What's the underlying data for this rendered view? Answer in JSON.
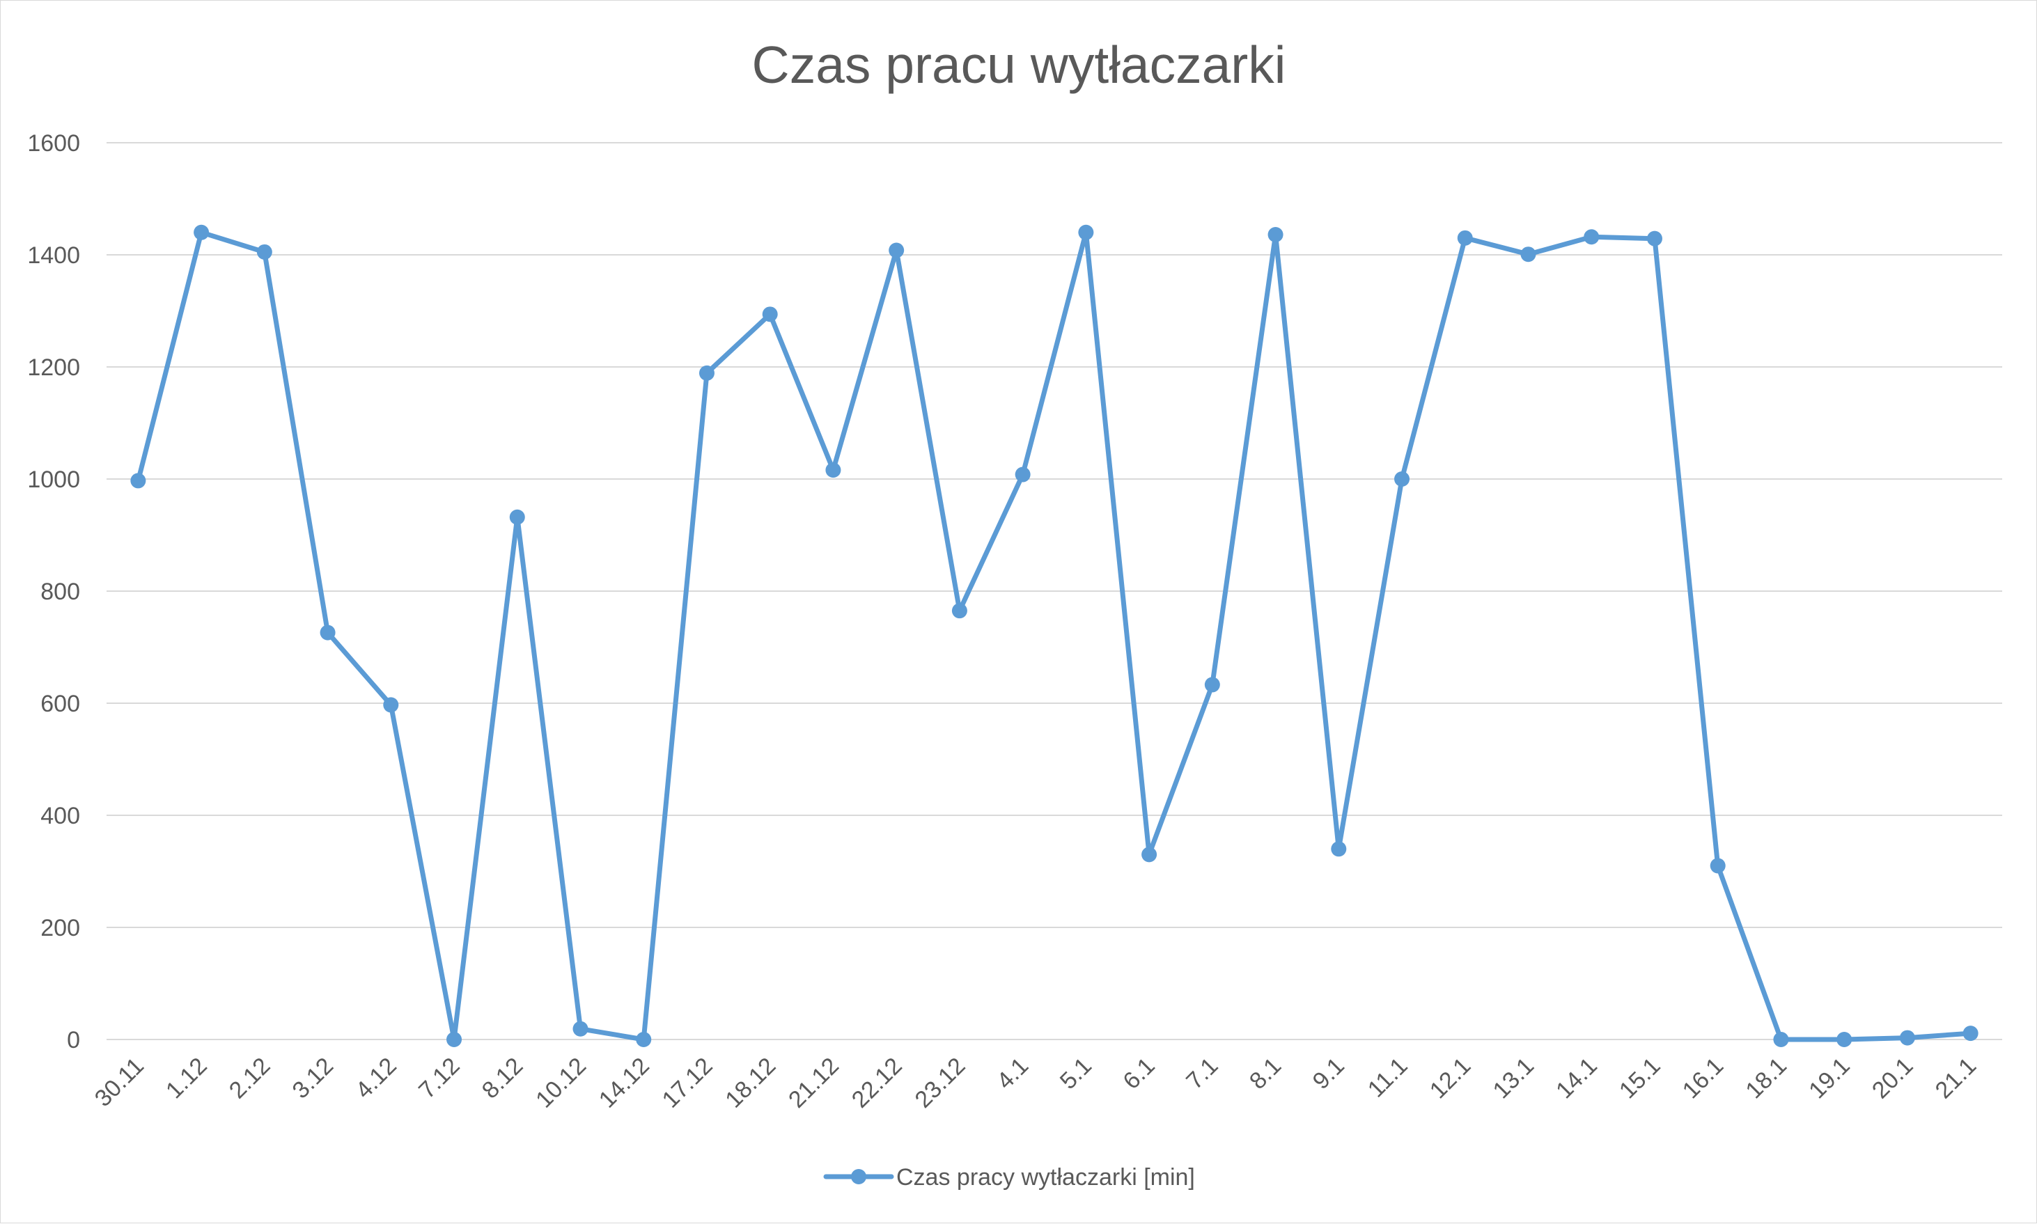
{
  "chart_data": {
    "type": "line",
    "title": "Czas pracu wytłaczarki",
    "xlabel": "",
    "ylabel": "",
    "ylim": [
      0,
      1600
    ],
    "y_ticks": [
      0,
      200,
      400,
      600,
      800,
      1000,
      1200,
      1400,
      1600
    ],
    "grid": true,
    "legend_position": "bottom",
    "categories": [
      "30.11",
      "1.12",
      "2.12",
      "3.12",
      "4.12",
      "7.12",
      "8.12",
      "10.12",
      "14.12",
      "17.12",
      "18.12",
      "21.12",
      "22.12",
      "23.12",
      "4.1",
      "5.1",
      "6.1",
      "7.1",
      "8.1",
      "9.1",
      "11.1",
      "12.1",
      "13.1",
      "14.1",
      "15.1",
      "16.1",
      "18.1",
      "19.1",
      "20.1",
      "21.1"
    ],
    "series": [
      {
        "name": "Czas pracy wytłaczarki [min]",
        "color": "#5b9bd5",
        "values": [
          997,
          1440,
          1405,
          726,
          597,
          0,
          932,
          19,
          0,
          1189,
          1294,
          1016,
          1408,
          765,
          1008,
          1440,
          330,
          633,
          1436,
          340,
          1000,
          1430,
          1401,
          1432,
          1429,
          310,
          0,
          0,
          3,
          11
        ]
      }
    ]
  }
}
